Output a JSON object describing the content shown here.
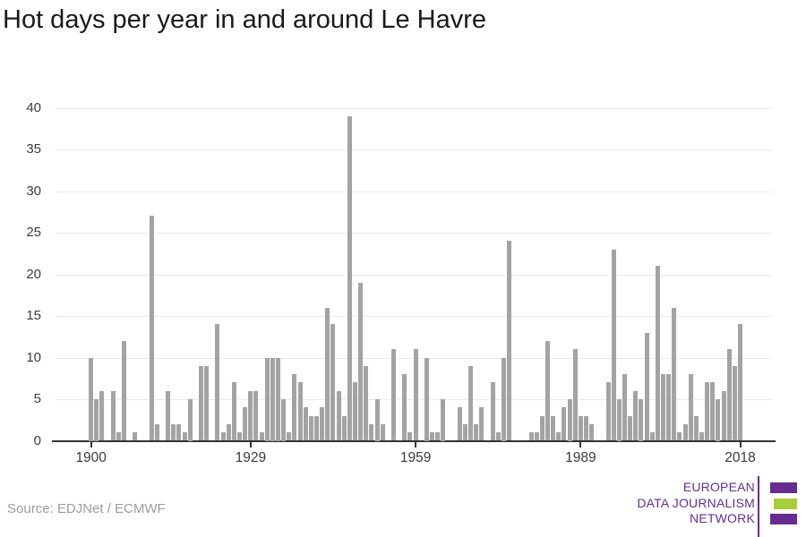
{
  "title": "Hot days per year in and around Le Havre",
  "source": "Source: EDJNet / ECMWF",
  "logo": {
    "line1": "EUROPEAN",
    "line2": "DATA JOURNALISM",
    "line3": "NETWORK",
    "purple": "#662d91",
    "green": "#a6ce38"
  },
  "chart_data": {
    "type": "bar",
    "title": "Hot days per year in and around Le Havre",
    "xlabel": "",
    "ylabel": "",
    "ylim": [
      0,
      40
    ],
    "grid": true,
    "legend": "none",
    "bar_color": "#a3a3a3",
    "grid_color": "#eaeaea",
    "axis_color": "#333333",
    "tick_label_color": "#3b3b3b",
    "xticks": [
      1900,
      1929,
      1959,
      1989,
      2018
    ],
    "yticks": [
      0,
      5,
      10,
      15,
      20,
      25,
      30,
      35,
      40
    ],
    "years": [
      1900,
      1901,
      1902,
      1903,
      1904,
      1905,
      1906,
      1907,
      1908,
      1909,
      1910,
      1911,
      1912,
      1913,
      1914,
      1915,
      1916,
      1917,
      1918,
      1919,
      1920,
      1921,
      1922,
      1923,
      1924,
      1925,
      1926,
      1927,
      1928,
      1929,
      1930,
      1931,
      1932,
      1933,
      1934,
      1935,
      1936,
      1937,
      1938,
      1939,
      1940,
      1941,
      1942,
      1943,
      1944,
      1945,
      1946,
      1947,
      1948,
      1949,
      1950,
      1951,
      1952,
      1953,
      1954,
      1955,
      1956,
      1957,
      1958,
      1959,
      1960,
      1961,
      1962,
      1963,
      1964,
      1965,
      1966,
      1967,
      1968,
      1969,
      1970,
      1971,
      1972,
      1973,
      1974,
      1975,
      1976,
      1977,
      1978,
      1979,
      1980,
      1981,
      1982,
      1983,
      1984,
      1985,
      1986,
      1987,
      1988,
      1989,
      1990,
      1991,
      1992,
      1993,
      1994,
      1995,
      1996,
      1997,
      1998,
      1999,
      2000,
      2001,
      2002,
      2003,
      2004,
      2005,
      2006,
      2007,
      2008,
      2009,
      2010,
      2011,
      2012,
      2013,
      2014,
      2015,
      2016,
      2017,
      2018
    ],
    "values": [
      10,
      5,
      6,
      0,
      6,
      1,
      12,
      0,
      1,
      0,
      0,
      27,
      2,
      0,
      6,
      2,
      2,
      1,
      5,
      0,
      9,
      9,
      0,
      14,
      1,
      2,
      7,
      1,
      4,
      6,
      6,
      1,
      10,
      10,
      10,
      5,
      1,
      8,
      7,
      4,
      3,
      3,
      4,
      16,
      14,
      6,
      3,
      39,
      7,
      19,
      9,
      2,
      5,
      2,
      0,
      11,
      0,
      8,
      1,
      11,
      0,
      10,
      1,
      1,
      5,
      0,
      0,
      4,
      2,
      9,
      2,
      4,
      0,
      7,
      1,
      10,
      24,
      0,
      0,
      0,
      1,
      1,
      3,
      12,
      3,
      1,
      4,
      5,
      11,
      3,
      3,
      2,
      0,
      0,
      7,
      23,
      5,
      8,
      3,
      6,
      5,
      13,
      1,
      21,
      8,
      8,
      16,
      1,
      2,
      8,
      3,
      1,
      7,
      7,
      5,
      6,
      11,
      9,
      14
    ]
  }
}
